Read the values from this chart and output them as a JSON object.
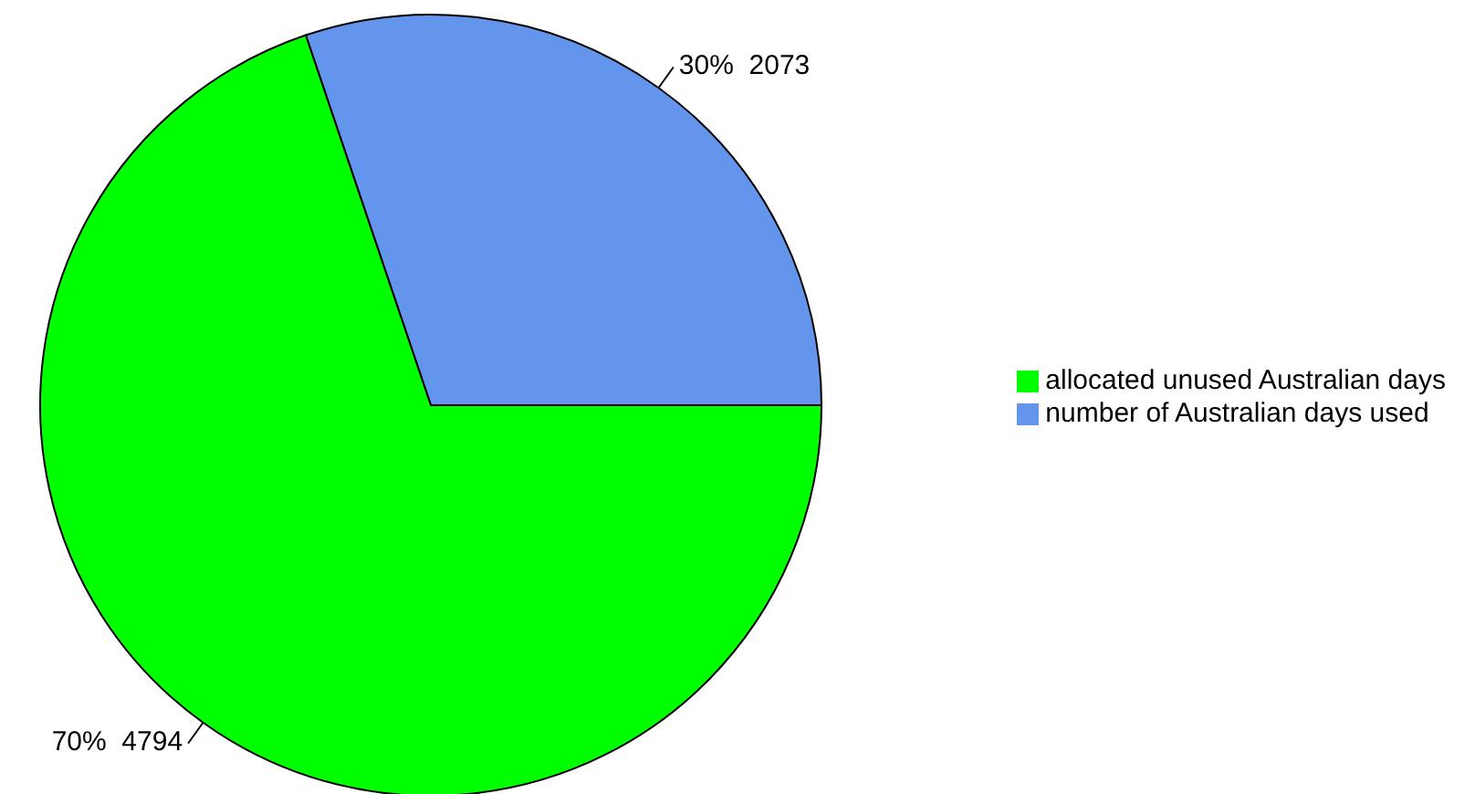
{
  "chart_data": {
    "type": "pie",
    "categories": [
      "number of Australian days used",
      "allocated unused Australian days"
    ],
    "values": [
      2073,
      4794
    ],
    "colors": [
      "#6495ed",
      "#00ff00"
    ],
    "value_labels": [
      "30%  2073",
      "70%  4794"
    ],
    "legend": "right"
  }
}
